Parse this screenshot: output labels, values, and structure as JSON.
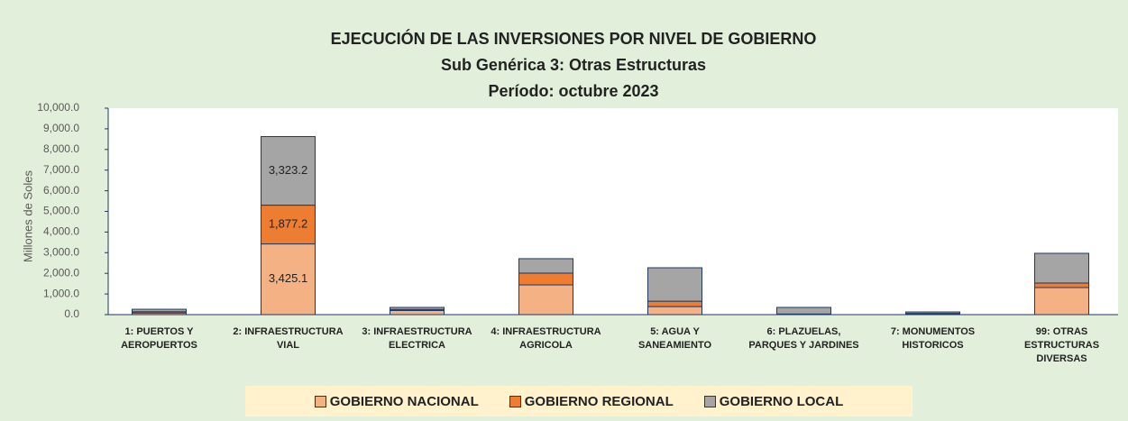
{
  "chart_data": {
    "type": "stacked_bar",
    "title": "EJECUCIÓN DE LAS INVERSIONES POR NIVEL DE GOBIERNO",
    "subtitle": "Sub Genérica 3: Otras Estructuras",
    "period": "Período: octubre 2023",
    "y_label": "Millones de Soles",
    "categories": [
      "1: PUERTOS Y AEROPUERTOS",
      "2: INFRAESTRUCTURA VIAL",
      "3: INFRAESTRUCTURA ELECTRICA",
      "4: INFRAESTRUCTURA AGRICOLA",
      "5: AGUA Y SANEAMIENTO",
      "6: PLAZUELAS, PARQUES Y JARDINES",
      "7: MONUMENTOS HISTORICOS",
      "99: OTRAS ESTRUCTURAS DIVERSAS"
    ],
    "series": [
      {
        "name": "GOBIERNO NACIONAL",
        "color": "#f4b183",
        "values": [
          80,
          3425.1,
          200,
          1440,
          390,
          20,
          40,
          1310
        ],
        "value_labels": [
          null,
          "3,425.1",
          null,
          null,
          null,
          null,
          null,
          null
        ]
      },
      {
        "name": "GOBIERNO REGIONAL",
        "color": "#ed7d31",
        "values": [
          60,
          1877.2,
          50,
          570,
          260,
          10,
          20,
          220
        ],
        "value_labels": [
          null,
          "1,877.2",
          null,
          null,
          null,
          null,
          null,
          null
        ]
      },
      {
        "name": "GOBIERNO LOCAL",
        "color": "#a5a5a5",
        "values": [
          120,
          3323.2,
          100,
          700,
          1620,
          320,
          70,
          1440
        ],
        "value_labels": [
          null,
          "3,323.2",
          null,
          null,
          null,
          null,
          null,
          null
        ]
      }
    ],
    "ylim": [
      0,
      10000
    ],
    "yticks": [
      {
        "value": 0,
        "label": "0.0"
      },
      {
        "value": 1000,
        "label": "1,000.0"
      },
      {
        "value": 2000,
        "label": "2,000.0"
      },
      {
        "value": 3000,
        "label": "3,000.0"
      },
      {
        "value": 4000,
        "label": "4,000.0"
      },
      {
        "value": 5000,
        "label": "5,000.0"
      },
      {
        "value": 6000,
        "label": "6,000.0"
      },
      {
        "value": 7000,
        "label": "7,000.0"
      },
      {
        "value": 8000,
        "label": "8,000.0"
      },
      {
        "value": 9000,
        "label": "9,000.0"
      },
      {
        "value": 10000,
        "label": "10,000.0"
      }
    ],
    "legend": "bottom"
  }
}
